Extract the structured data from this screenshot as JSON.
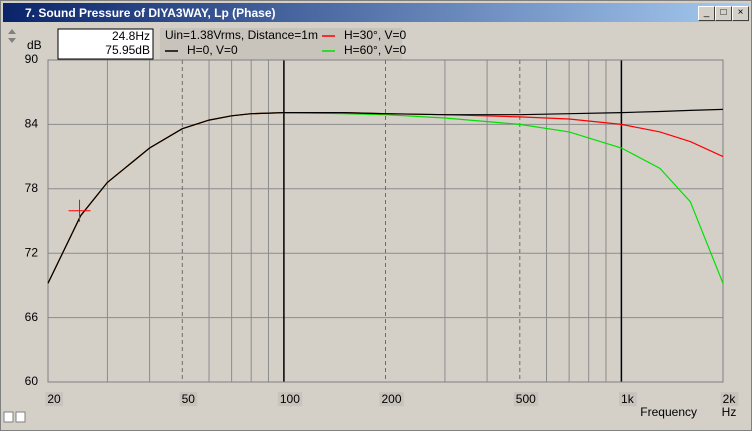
{
  "window_title": "7. Sound Pressure of DIYA3WAY, Lp (Phase)",
  "chart_data": {
    "type": "line",
    "y_label": "dB",
    "x_label": "Frequency",
    "x_unit": "Hz",
    "annotation": "Uin=1.38Vrms, Distance=1m",
    "x_scale": "log",
    "grid": true,
    "xlim": [
      20,
      2000
    ],
    "ylim": [
      60,
      90
    ],
    "yticks": [
      60,
      66,
      72,
      78,
      84,
      90
    ],
    "xticks": [
      20,
      50,
      100,
      200,
      500,
      {
        "value": 1000,
        "label": "1k"
      },
      {
        "value": 2000,
        "label": "2k"
      }
    ],
    "x_minor_grid": [
      30,
      40,
      60,
      70,
      80,
      90,
      300,
      400,
      600,
      700,
      800,
      900
    ],
    "x": [
      20,
      25,
      30,
      40,
      50,
      60,
      70,
      80,
      100,
      150,
      200,
      300,
      500,
      700,
      1000,
      1300,
      1600,
      2000
    ],
    "series": [
      {
        "name": "H=0, V=0",
        "color": "#000000",
        "values": [
          69.2,
          75.5,
          78.6,
          81.8,
          83.6,
          84.4,
          84.8,
          85.0,
          85.1,
          85.1,
          85.0,
          84.9,
          84.9,
          85.0,
          85.1,
          85.2,
          85.3,
          85.4
        ]
      },
      {
        "name": "H=30°, V=0",
        "color": "#ff0000",
        "values": [
          69.2,
          75.5,
          78.6,
          81.8,
          83.6,
          84.4,
          84.8,
          85.0,
          85.1,
          85.1,
          85.0,
          84.9,
          84.7,
          84.5,
          84.0,
          83.3,
          82.4,
          81.0
        ]
      },
      {
        "name": "H=60°, V=0",
        "color": "#00e000",
        "values": [
          69.2,
          75.5,
          78.6,
          81.8,
          83.6,
          84.4,
          84.8,
          85.0,
          85.1,
          85.0,
          84.9,
          84.6,
          84.0,
          83.3,
          81.8,
          79.9,
          76.8,
          69.2
        ]
      }
    ],
    "cursor": {
      "x": 24.8,
      "y": 75.95,
      "x_label": "24.8Hz",
      "y_label": "75.95dB",
      "color": "#ff0000"
    }
  }
}
